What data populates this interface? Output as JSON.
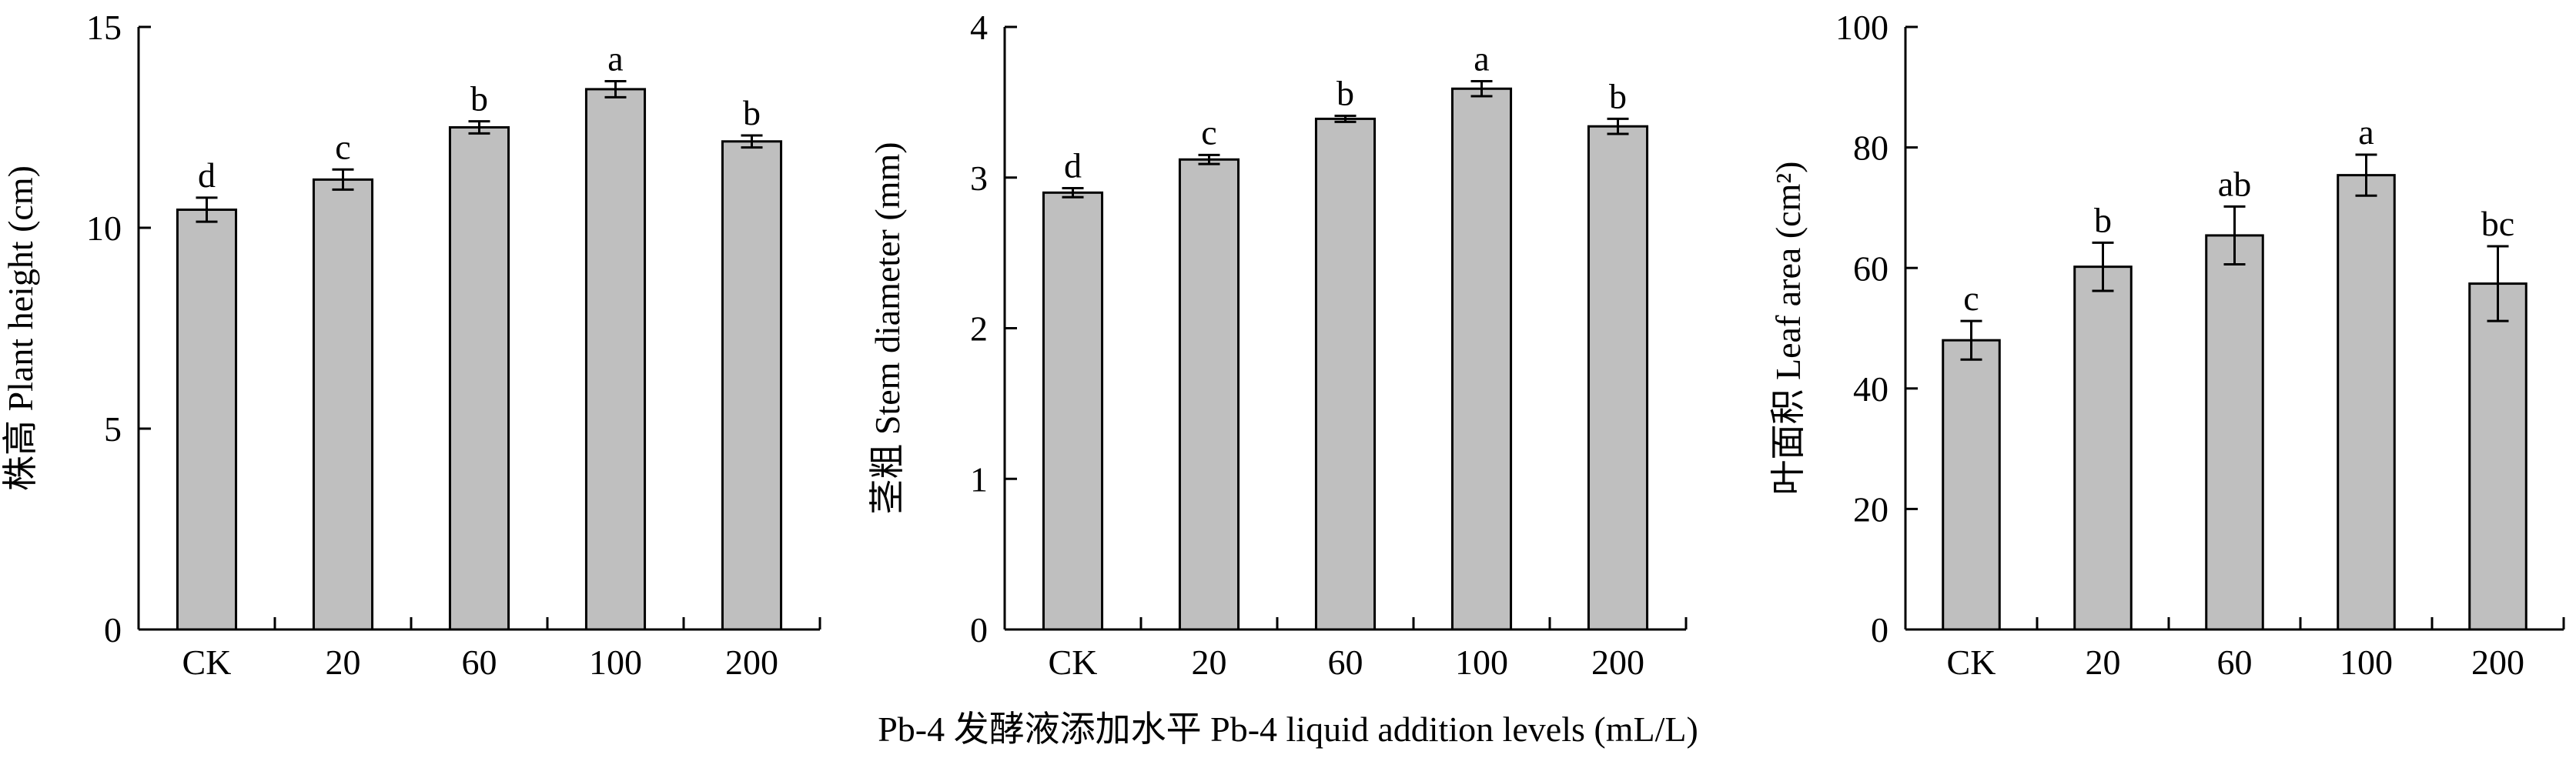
{
  "x_axis_title": "Pb-4 发酵液添加水平 Pb-4 liquid addition levels (mL/L)",
  "colors": {
    "bar_fill": "#bfbfbf",
    "bar_stroke": "#000000",
    "axis": "#000000"
  },
  "chart_data": [
    {
      "type": "bar",
      "ylabel": "株高 Plant height (cm)",
      "categories": [
        "CK",
        "20",
        "60",
        "100",
        "200"
      ],
      "values": [
        10.45,
        11.2,
        12.5,
        13.45,
        12.15
      ],
      "errors": [
        0.3,
        0.25,
        0.15,
        0.2,
        0.15
      ],
      "sig_letters": [
        "d",
        "c",
        "b",
        "a",
        "b"
      ],
      "ylim": [
        0,
        15
      ],
      "yticks": [
        0,
        5,
        10,
        15
      ]
    },
    {
      "type": "bar",
      "ylabel": "茎粗 Stem diameter (mm)",
      "categories": [
        "CK",
        "20",
        "60",
        "100",
        "200"
      ],
      "values": [
        2.9,
        3.12,
        3.39,
        3.59,
        3.34
      ],
      "errors": [
        0.03,
        0.03,
        0.02,
        0.05,
        0.05
      ],
      "sig_letters": [
        "d",
        "c",
        "b",
        "a",
        "b"
      ],
      "ylim": [
        0,
        4
      ],
      "yticks": [
        0,
        1,
        2,
        3,
        4
      ]
    },
    {
      "type": "bar",
      "ylabel": "叶面积 Leaf area (cm²)",
      "categories": [
        "CK",
        "20",
        "60",
        "100",
        "200"
      ],
      "values": [
        48,
        60.2,
        65.4,
        75.4,
        57.4
      ],
      "errors": [
        3.2,
        4.0,
        4.8,
        3.4,
        6.2
      ],
      "sig_letters": [
        "c",
        "b",
        "ab",
        "a",
        "bc"
      ],
      "ylim": [
        0,
        100
      ],
      "yticks": [
        0,
        20,
        40,
        60,
        80,
        100
      ]
    }
  ]
}
